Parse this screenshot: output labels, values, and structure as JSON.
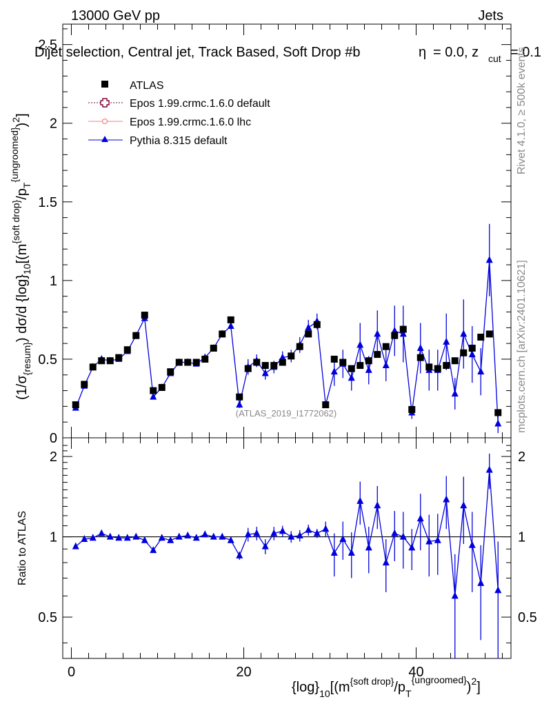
{
  "header": {
    "energy": "13000 GeV pp",
    "category": "Jets"
  },
  "chart_data": [
    {
      "type": "scatter",
      "panel": "main",
      "title": "Dijet selection, Central jet, Track Based, Soft Drop #b",
      "title_suffix": "= 0.0, z",
      "title_cut_sub": "cut",
      "title_value": "= 0.1",
      "title_beta": "η",
      "xlabel": "{log}_10[(m^{soft drop}/p_T^{ungroomed})^2]",
      "ylabel": "(1/σ_{resum}) dσ/d {log}_10[(m^{soft drop}/p_T^{ungroomed})^2]",
      "xlim": [
        -1,
        51
      ],
      "ylim": [
        0,
        2.63
      ],
      "yticks": [
        0,
        0.5,
        1,
        1.5,
        2,
        2.5
      ],
      "ytick_labels": [
        "0",
        "0.5",
        "1",
        "1.5",
        "2",
        "2.5"
      ],
      "legend": [
        "ATLAS",
        "Epos 1.99.crmc.1.6.0 default",
        "Epos 1.99.crmc.1.6.0 lhc",
        "Pythia 8.315 default"
      ],
      "watermark": "(ATLAS_2019_I1772062)",
      "x": [
        0.5,
        1.5,
        2.5,
        3.5,
        4.5,
        5.5,
        6.5,
        7.5,
        8.5,
        9.5,
        10.5,
        11.5,
        12.5,
        13.5,
        14.5,
        15.5,
        16.5,
        17.5,
        18.5,
        19.5,
        20.5,
        21.5,
        22.5,
        23.5,
        24.5,
        25.5,
        26.5,
        27.5,
        28.5,
        29.5,
        30.5,
        31.5,
        32.5,
        33.5,
        34.5,
        35.5,
        36.5,
        37.5,
        38.5,
        39.5,
        40.5,
        41.5,
        42.5,
        43.5,
        44.5,
        45.5,
        46.5,
        47.5,
        48.5,
        49.5
      ],
      "series": [
        {
          "name": "ATLAS",
          "values": [
            0.21,
            0.34,
            0.45,
            0.49,
            0.49,
            0.51,
            0.56,
            0.65,
            0.78,
            0.3,
            0.32,
            0.42,
            0.48,
            0.48,
            0.48,
            0.5,
            0.57,
            0.66,
            0.75,
            0.26,
            0.44,
            0.48,
            0.46,
            0.46,
            0.48,
            0.52,
            0.58,
            0.66,
            0.72,
            0.21,
            0.5,
            0.48,
            0.44,
            0.46,
            0.49,
            0.53,
            0.58,
            0.65,
            0.69,
            0.18,
            0.51,
            0.45,
            0.44,
            0.46,
            0.49,
            0.54,
            0.57,
            0.64,
            0.66,
            0.16
          ]
        },
        {
          "name": "Pythia 8.315 default",
          "values": [
            0.19,
            0.33,
            0.45,
            0.5,
            0.49,
            0.5,
            0.55,
            0.65,
            0.76,
            0.26,
            0.32,
            0.41,
            0.48,
            0.48,
            0.47,
            0.51,
            0.57,
            0.66,
            0.71,
            0.21,
            0.45,
            0.49,
            0.41,
            0.45,
            0.51,
            0.52,
            0.59,
            0.7,
            0.74,
            0.21,
            0.42,
            0.47,
            0.38,
            0.59,
            0.43,
            0.66,
            0.46,
            0.68,
            0.66,
            0.16,
            0.57,
            0.43,
            0.43,
            0.61,
            0.28,
            0.66,
            0.53,
            0.42,
            1.13,
            0.09
          ],
          "errors": [
            0.01,
            0.01,
            0.01,
            0.01,
            0.01,
            0.01,
            0.01,
            0.01,
            0.02,
            0.01,
            0.01,
            0.01,
            0.01,
            0.01,
            0.01,
            0.01,
            0.01,
            0.01,
            0.02,
            0.02,
            0.05,
            0.04,
            0.04,
            0.04,
            0.04,
            0.04,
            0.05,
            0.05,
            0.05,
            0.02,
            0.09,
            0.09,
            0.08,
            0.14,
            0.09,
            0.15,
            0.1,
            0.16,
            0.18,
            0.04,
            0.16,
            0.13,
            0.13,
            0.18,
            0.1,
            0.22,
            0.18,
            0.15,
            0.23,
            0.06
          ]
        }
      ]
    },
    {
      "type": "scatter",
      "panel": "ratio",
      "ylabel": "Ratio to ATLAS",
      "xlabel": "{log}_10[(m^{soft drop}/p_T^{ungroomed})^2]",
      "xlim": [
        -1,
        51
      ],
      "ylim": [
        0.35,
        2.35
      ],
      "xticks": [
        0,
        20,
        40
      ],
      "xtick_labels": [
        "0",
        "20",
        "40"
      ],
      "yticks": [
        0.5,
        1,
        2
      ],
      "ytick_labels": [
        "0.5",
        "1",
        "2"
      ],
      "reference_line": 1,
      "series": [
        {
          "name": "Pythia 8.315 default",
          "values": [
            0.92,
            0.98,
            0.99,
            1.03,
            1.0,
            0.99,
            0.99,
            1.0,
            0.97,
            0.89,
            0.99,
            0.97,
            1.0,
            1.01,
            0.99,
            1.02,
            1.0,
            1.0,
            0.97,
            0.85,
            1.02,
            1.03,
            0.92,
            1.03,
            1.05,
            1.0,
            1.01,
            1.06,
            1.03,
            1.07,
            0.87,
            0.98,
            0.87,
            1.36,
            0.91,
            1.31,
            0.8,
            1.03,
            1.0,
            0.91,
            1.17,
            0.96,
            0.97,
            1.38,
            0.6,
            1.31,
            0.93,
            0.67,
            1.78,
            0.63
          ],
          "errors": [
            0.01,
            0.01,
            0.01,
            0.01,
            0.01,
            0.01,
            0.01,
            0.01,
            0.01,
            0.01,
            0.02,
            0.02,
            0.01,
            0.01,
            0.01,
            0.01,
            0.01,
            0.01,
            0.01,
            0.03,
            0.06,
            0.06,
            0.06,
            0.06,
            0.05,
            0.05,
            0.05,
            0.05,
            0.04,
            0.07,
            0.16,
            0.16,
            0.17,
            0.25,
            0.18,
            0.24,
            0.18,
            0.22,
            0.24,
            0.16,
            0.28,
            0.25,
            0.25,
            0.31,
            0.26,
            0.37,
            0.31,
            0.26,
            0.27,
            0.33
          ]
        }
      ]
    }
  ],
  "side_text": {
    "rivet": "Rivet 4.1.0, ≥ 500k events",
    "mcplots": "mcplots.cern.ch [arXiv:2401.10621]"
  },
  "colors": {
    "data": "#000000",
    "pythia": "#0000dd",
    "epos_default": "#7a0030",
    "epos_lhc": "#f08080",
    "grey": "#888888"
  }
}
